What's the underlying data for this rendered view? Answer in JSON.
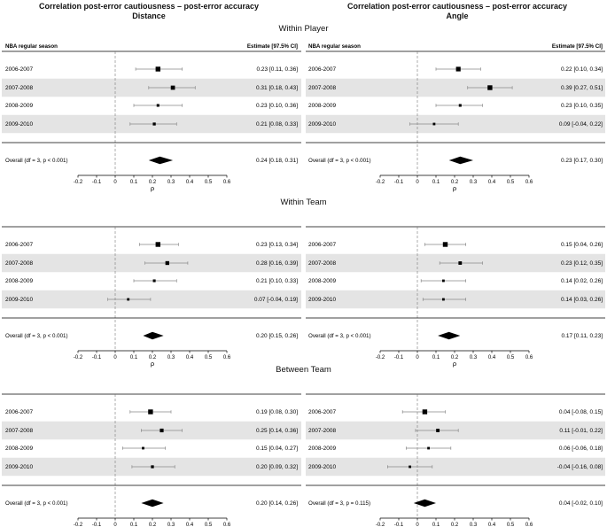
{
  "column_titles": [
    {
      "line1": "Correlation post-error cautiousness – post-error accuracy",
      "line2": "Distance"
    },
    {
      "line1": "Correlation post-error cautiousness – post-error accuracy",
      "line2": "Angle"
    }
  ],
  "colors": {
    "band": "#e4e4e4",
    "ink": "#000000",
    "ref_line": "#777777",
    "ci_line": "#888888"
  },
  "chart_data": [
    {
      "type": "forest",
      "section": "Within Player",
      "column": "Distance",
      "header_left": "NBA regular season",
      "header_right": "Estimate [97.5% CI]",
      "xlabel": "ρ",
      "xlim": [
        -0.2,
        0.6
      ],
      "ticks": [
        "-0.2",
        "-0.1",
        "0",
        "0.1",
        "0.2",
        "0.3",
        "0.4",
        "0.5",
        "0.6"
      ],
      "rows": [
        {
          "label": "2006-2007",
          "est": 0.23,
          "lo": 0.11,
          "hi": 0.36,
          "weight": 1.0,
          "text": "0.23 [0.11, 0.36]"
        },
        {
          "label": "2007-2008",
          "est": 0.31,
          "lo": 0.18,
          "hi": 0.43,
          "weight": 0.7,
          "text": "0.31 [0.18, 0.43]"
        },
        {
          "label": "2008-2009",
          "est": 0.23,
          "lo": 0.1,
          "hi": 0.36,
          "weight": 0.2,
          "text": "0.23 [0.10, 0.36]"
        },
        {
          "label": "2009-2010",
          "est": 0.21,
          "lo": 0.08,
          "hi": 0.33,
          "weight": 0.25,
          "text": "0.21 [0.08, 0.33]"
        }
      ],
      "overall": {
        "label": "Overall (df = 3, p < 0.001)",
        "est": 0.24,
        "lo": 0.18,
        "hi": 0.31,
        "text": "0.24 [0.18, 0.31]"
      }
    },
    {
      "type": "forest",
      "section": "Within Player",
      "column": "Angle",
      "header_left": "NBA regular season",
      "header_right": "Estimate [97.5% CI]",
      "xlabel": "ρ",
      "xlim": [
        -0.2,
        0.6
      ],
      "ticks": [
        "-0.2",
        "-0.1",
        "0",
        "0.1",
        "0.2",
        "0.3",
        "0.4",
        "0.5",
        "0.6"
      ],
      "rows": [
        {
          "label": "2006-2007",
          "est": 0.22,
          "lo": 0.1,
          "hi": 0.34,
          "weight": 0.9,
          "text": "0.22 [0.10, 0.34]"
        },
        {
          "label": "2007-2008",
          "est": 0.39,
          "lo": 0.27,
          "hi": 0.51,
          "weight": 1.0,
          "text": "0.39 [0.27, 0.51]"
        },
        {
          "label": "2008-2009",
          "est": 0.23,
          "lo": 0.1,
          "hi": 0.35,
          "weight": 0.2,
          "text": "0.23 [0.10, 0.35]"
        },
        {
          "label": "2009-2010",
          "est": 0.09,
          "lo": -0.04,
          "hi": 0.22,
          "weight": 0.15,
          "text": "0.09 [-0.04, 0.22]"
        }
      ],
      "overall": {
        "label": "Overall (df = 3, p < 0.001)",
        "est": 0.23,
        "lo": 0.17,
        "hi": 0.3,
        "text": "0.23 [0.17, 0.30]"
      }
    },
    {
      "type": "forest",
      "section": "Within Team",
      "column": "Distance",
      "header_left": "",
      "header_right": "",
      "xlabel": "ρ",
      "xlim": [
        -0.2,
        0.6
      ],
      "ticks": [
        "-0.2",
        "-0.1",
        "0",
        "0.1",
        "0.2",
        "0.3",
        "0.4",
        "0.5",
        "0.6"
      ],
      "rows": [
        {
          "label": "2006-2007",
          "est": 0.23,
          "lo": 0.13,
          "hi": 0.34,
          "weight": 1.0,
          "text": "0.23 [0.13, 0.34]"
        },
        {
          "label": "2007-2008",
          "est": 0.28,
          "lo": 0.16,
          "hi": 0.39,
          "weight": 0.55,
          "text": "0.28 [0.16, 0.39]"
        },
        {
          "label": "2008-2009",
          "est": 0.21,
          "lo": 0.1,
          "hi": 0.33,
          "weight": 0.2,
          "text": "0.21 [0.10, 0.33]"
        },
        {
          "label": "2009-2010",
          "est": 0.07,
          "lo": -0.04,
          "hi": 0.19,
          "weight": 0.15,
          "text": "0.07 [-0.04, 0.19]"
        }
      ],
      "overall": {
        "label": "Overall (df = 3, p < 0.001)",
        "est": 0.2,
        "lo": 0.15,
        "hi": 0.26,
        "text": "0.20 [0.15, 0.26]"
      }
    },
    {
      "type": "forest",
      "section": "Within Team",
      "column": "Angle",
      "header_left": "",
      "header_right": "",
      "xlabel": "ρ",
      "xlim": [
        -0.2,
        0.6
      ],
      "ticks": [
        "-0.2",
        "-0.1",
        "0",
        "0.1",
        "0.2",
        "0.3",
        "0.4",
        "0.5",
        "0.6"
      ],
      "rows": [
        {
          "label": "2006-2007",
          "est": 0.15,
          "lo": 0.04,
          "hi": 0.26,
          "weight": 1.0,
          "text": "0.15 [0.04, 0.26]"
        },
        {
          "label": "2007-2008",
          "est": 0.23,
          "lo": 0.12,
          "hi": 0.35,
          "weight": 0.4,
          "text": "0.23 [0.12, 0.35]"
        },
        {
          "label": "2008-2009",
          "est": 0.14,
          "lo": 0.02,
          "hi": 0.26,
          "weight": 0.15,
          "text": "0.14 [0.02, 0.26]"
        },
        {
          "label": "2009-2010",
          "est": 0.14,
          "lo": 0.03,
          "hi": 0.26,
          "weight": 0.15,
          "text": "0.14 [0.03, 0.26]"
        }
      ],
      "overall": {
        "label": "Overall (df = 3, p < 0.001)",
        "est": 0.17,
        "lo": 0.11,
        "hi": 0.23,
        "text": "0.17 [0.11, 0.23]"
      }
    },
    {
      "type": "forest",
      "section": "Between Team",
      "column": "Distance",
      "header_left": "",
      "header_right": "",
      "xlabel": "ρ",
      "xlim": [
        -0.2,
        0.6
      ],
      "ticks": [
        "-0.2",
        "-0.1",
        "0",
        "0.1",
        "0.2",
        "0.3",
        "0.4",
        "0.5",
        "0.6"
      ],
      "rows": [
        {
          "label": "2006-2007",
          "est": 0.19,
          "lo": 0.08,
          "hi": 0.3,
          "weight": 1.0,
          "text": "0.19 [0.08, 0.30]"
        },
        {
          "label": "2007-2008",
          "est": 0.25,
          "lo": 0.14,
          "hi": 0.36,
          "weight": 0.5,
          "text": "0.25 [0.14, 0.36]"
        },
        {
          "label": "2008-2009",
          "est": 0.15,
          "lo": 0.04,
          "hi": 0.27,
          "weight": 0.15,
          "text": "0.15 [0.04, 0.27]"
        },
        {
          "label": "2009-2010",
          "est": 0.2,
          "lo": 0.09,
          "hi": 0.32,
          "weight": 0.25,
          "text": "0.20 [0.09, 0.32]"
        }
      ],
      "overall": {
        "label": "Overall (df = 3, p < 0.001)",
        "est": 0.2,
        "lo": 0.14,
        "hi": 0.26,
        "text": "0.20 [0.14, 0.26]"
      }
    },
    {
      "type": "forest",
      "section": "Between Team",
      "column": "Angle",
      "header_left": "",
      "header_right": "",
      "xlabel": "ρ",
      "xlim": [
        -0.2,
        0.6
      ],
      "ticks": [
        "-0.2",
        "-0.1",
        "0",
        "0.1",
        "0.2",
        "0.3",
        "0.4",
        "0.5",
        "0.6"
      ],
      "rows": [
        {
          "label": "2006-2007",
          "est": 0.04,
          "lo": -0.08,
          "hi": 0.15,
          "weight": 1.0,
          "text": "0.04 [-0.08, 0.15]"
        },
        {
          "label": "2007-2008",
          "est": 0.11,
          "lo": -0.01,
          "hi": 0.22,
          "weight": 0.4,
          "text": "0.11 [-0.01, 0.22]"
        },
        {
          "label": "2008-2009",
          "est": 0.06,
          "lo": -0.06,
          "hi": 0.18,
          "weight": 0.15,
          "text": "0.06 [-0.06, 0.18]"
        },
        {
          "label": "2009-2010",
          "est": -0.04,
          "lo": -0.16,
          "hi": 0.08,
          "weight": 0.15,
          "text": "-0.04 [-0.16, 0.08]"
        }
      ],
      "overall": {
        "label": "Overall (df = 3, p = 0.115)",
        "est": 0.04,
        "lo": -0.02,
        "hi": 0.1,
        "text": "0.04 [-0.02, 0.10]"
      }
    }
  ]
}
